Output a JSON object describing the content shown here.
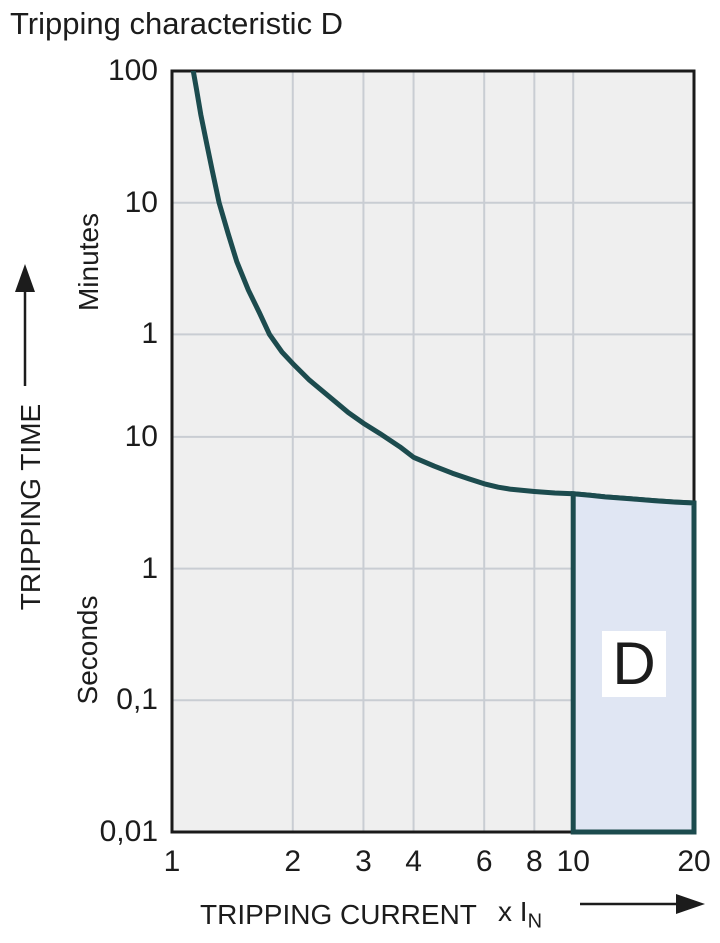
{
  "title": "Tripping characteristic D",
  "y_axis": {
    "title": "TRIPPING TIME",
    "unit_top": "Minutes",
    "unit_bottom": "Seconds"
  },
  "x_axis": {
    "title": "TRIPPING CURRENT",
    "multiplier": "x I",
    "multiplier_sub": "N"
  },
  "region": {
    "label": "D"
  },
  "chart_data": {
    "type": "line",
    "title": "Tripping characteristic D",
    "x_axis": {
      "label": "TRIPPING CURRENT (x IN)",
      "scale": "log",
      "range": [
        1,
        20
      ],
      "tick_labels": [
        "1",
        "2",
        "3",
        "4",
        "6",
        "8",
        "10",
        "20"
      ],
      "tick_values": [
        1,
        2,
        3,
        4,
        6,
        8,
        10,
        20
      ],
      "gridline_values": [
        2,
        3,
        4,
        6,
        8,
        10
      ]
    },
    "y_axis": {
      "label": "TRIPPING TIME",
      "scale": "log",
      "range_seconds": [
        0.01,
        6000
      ],
      "units": [
        "Minutes",
        "Seconds"
      ],
      "tick_labels": [
        "100",
        "10",
        "1",
        "10",
        "1",
        "0,1",
        "0,01"
      ],
      "tick_values_seconds": [
        6000,
        600,
        60,
        10,
        1,
        0.1,
        0.01
      ],
      "gridline_values_seconds": [
        600,
        60,
        10,
        1,
        0.1
      ]
    },
    "grid": true,
    "legend": false,
    "series": [
      {
        "name": "D tripping curve",
        "x_multiples_of_in": [
          1.12,
          1.15,
          1.18,
          1.22,
          1.26,
          1.31,
          1.38,
          1.45,
          1.55,
          1.65,
          1.75,
          1.88,
          2.0,
          2.2,
          2.5,
          2.75,
          3.0,
          3.3,
          3.7,
          4.0,
          4.5,
          5.0,
          5.5,
          6.0,
          6.5,
          7.0,
          8.0,
          9.0,
          10.0,
          11.0,
          12.0,
          14.0,
          16.0,
          18.0,
          20.0
        ],
        "t_seconds": [
          7000,
          4400,
          2800,
          1700,
          1050,
          600,
          350,
          215,
          130,
          88,
          60,
          44,
          36,
          27,
          19.5,
          15.3,
          12.7,
          10.6,
          8.4,
          7.0,
          6.0,
          5.3,
          4.8,
          4.4,
          4.15,
          4.0,
          3.85,
          3.75,
          3.7,
          3.6,
          3.5,
          3.38,
          3.28,
          3.2,
          3.15
        ]
      }
    ],
    "region": {
      "label": "D",
      "x_from": 10,
      "x_to": 20,
      "t_bottom_seconds": 0.01,
      "top_follows_curve": true
    },
    "colors": {
      "curve": "#1c4b4e",
      "region_fill": "#e0e6f3",
      "region_label_background": "#ffffff",
      "plot_background": "#efefef",
      "gridline": "#c9cdd3",
      "border": "#1a1a1a",
      "text": "#1c1c1c"
    }
  }
}
